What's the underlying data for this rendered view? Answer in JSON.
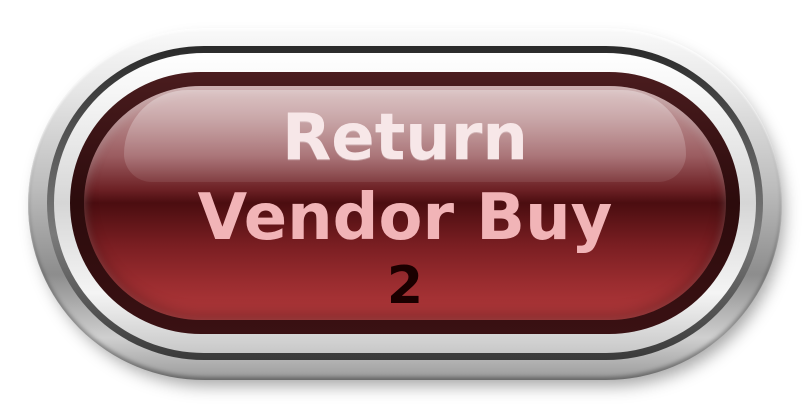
{
  "button": {
    "line1": "Return",
    "line2": "Vendor Buy",
    "number": "2"
  },
  "colors": {
    "face_top": "#c9a5a6",
    "face_band": "#4b0d10",
    "face_bottom": "#b2393b",
    "label_light": "#f7e7e8",
    "label_pink": "#f1b4b7",
    "number_dark": "#1a0000"
  }
}
